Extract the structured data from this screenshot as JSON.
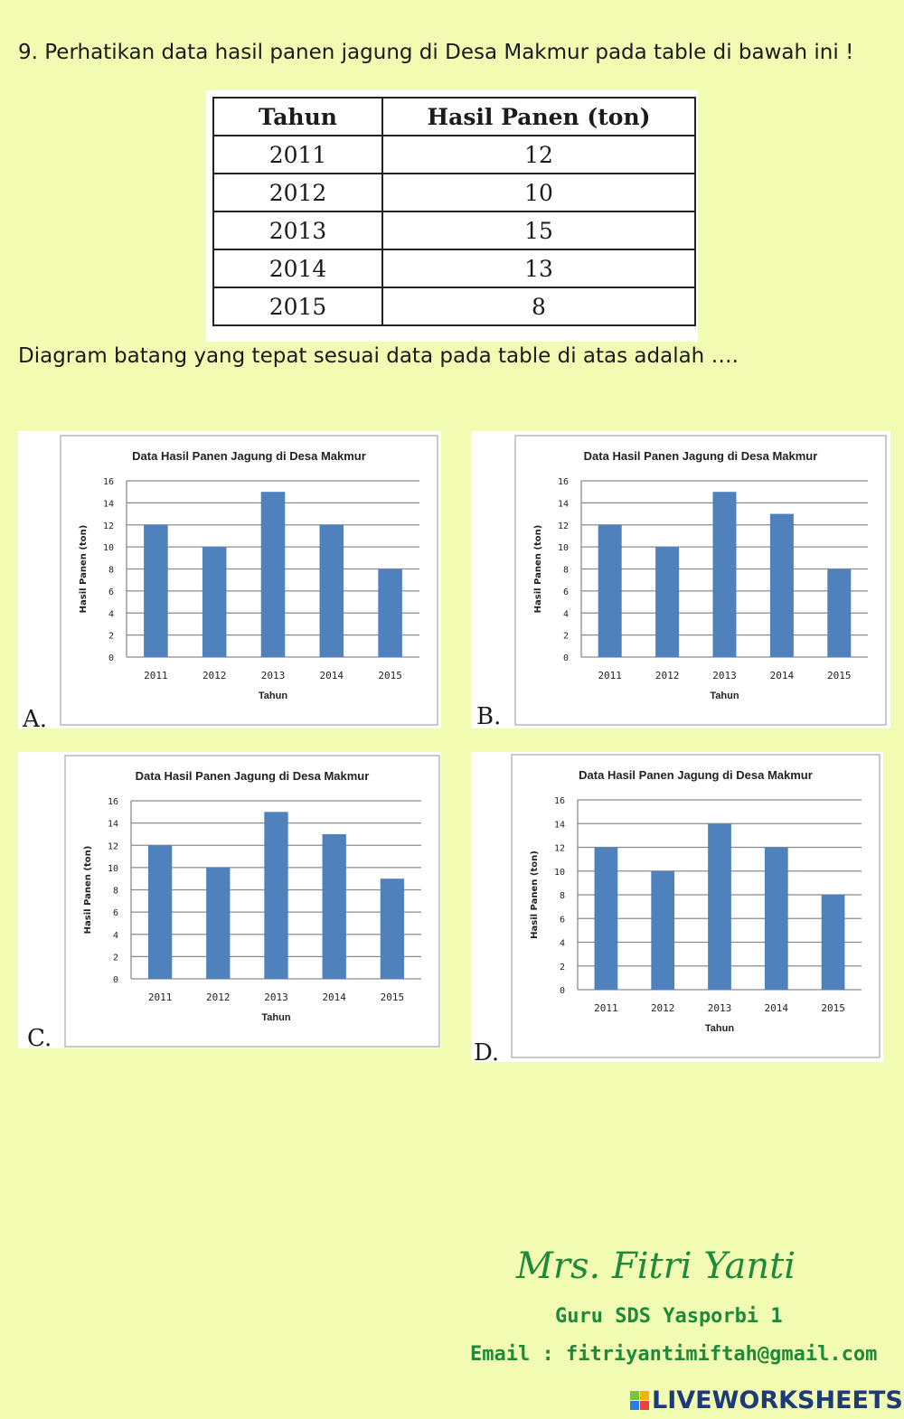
{
  "question": {
    "text": "9. Perhatikan data hasil panen jagung di Desa Makmur pada table di bawah ini !",
    "prompt": "Diagram batang yang tepat sesuai data pada table di atas adalah …."
  },
  "table": {
    "headers": [
      "Tahun",
      "Hasil Panen (ton)"
    ],
    "rows": [
      [
        "2011",
        "12"
      ],
      [
        "2012",
        "10"
      ],
      [
        "2013",
        "15"
      ],
      [
        "2014",
        "13"
      ],
      [
        "2015",
        "8"
      ]
    ]
  },
  "colors": {
    "bar": "#4f81bd",
    "background": "#f1fbb2",
    "green": "#1e8a3c"
  },
  "chart_data": [
    {
      "option": "A.",
      "type": "bar",
      "title": "Data Hasil Panen Jagung di Desa Makmur",
      "xlabel": "Tahun",
      "ylabel": "Hasil Panen (ton)",
      "categories": [
        "2011",
        "2012",
        "2013",
        "2014",
        "2015"
      ],
      "values": [
        12,
        10,
        15,
        12,
        8
      ],
      "ylim": [
        0,
        16
      ],
      "yticks": [
        "0",
        "2",
        "4",
        "6",
        "8",
        "10",
        "12",
        "14",
        "16"
      ],
      "grid": true
    },
    {
      "option": "B.",
      "type": "bar",
      "title": "Data Hasil Panen Jagung di Desa Makmur",
      "xlabel": "Tahun",
      "ylabel": "Hasil Panen (ton)",
      "categories": [
        "2011",
        "2012",
        "2013",
        "2014",
        "2015"
      ],
      "values": [
        12,
        10,
        15,
        13,
        8
      ],
      "ylim": [
        0,
        16
      ],
      "yticks": [
        "0",
        "2",
        "4",
        "6",
        "8",
        "10",
        "12",
        "14",
        "16"
      ],
      "grid": true
    },
    {
      "option": "C.",
      "type": "bar",
      "title": "Data Hasil Panen Jagung di Desa Makmur",
      "xlabel": "Tahun",
      "ylabel": "Hasil Panen (ton)",
      "categories": [
        "2011",
        "2012",
        "2013",
        "2014",
        "2015"
      ],
      "values": [
        12,
        10,
        15,
        13,
        9
      ],
      "ylim": [
        0,
        16
      ],
      "yticks": [
        "0",
        "2",
        "4",
        "6",
        "8",
        "10",
        "12",
        "14",
        "16"
      ],
      "grid": true
    },
    {
      "option": "D.",
      "type": "bar",
      "title": "Data Hasil Panen Jagung di Desa Makmur",
      "xlabel": "Tahun",
      "ylabel": "Hasil Panen (ton)",
      "categories": [
        "2011",
        "2012",
        "2013",
        "2014",
        "2015"
      ],
      "values": [
        12,
        10,
        14,
        12,
        8
      ],
      "ylim": [
        0,
        16
      ],
      "yticks": [
        "0",
        "2",
        "4",
        "6",
        "8",
        "10",
        "12",
        "14",
        "16"
      ],
      "grid": true
    }
  ],
  "footer": {
    "signature": "Mrs. Fitri Yanti",
    "school": "Guru SDS Yasporbi 1",
    "email": "Email : fitriyantimiftah@gmail.com",
    "brand": "LIVEWORKSHEETS"
  }
}
